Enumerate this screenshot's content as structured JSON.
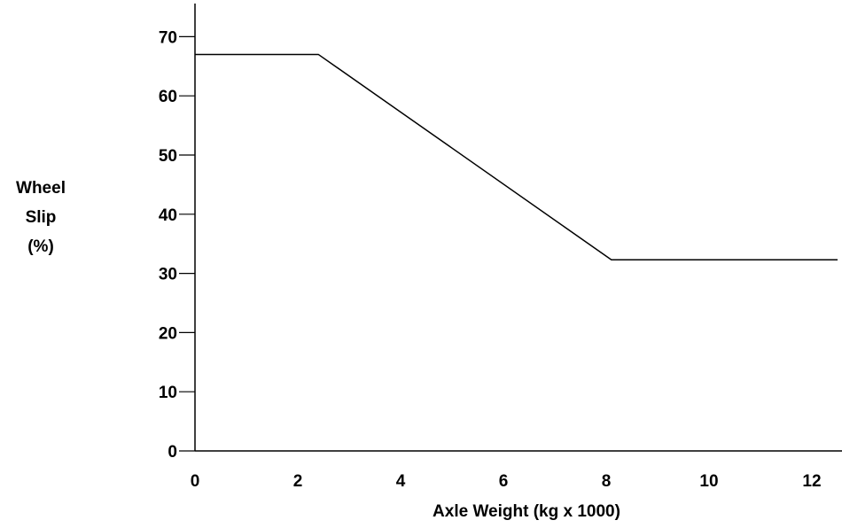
{
  "chart_data": {
    "type": "line",
    "title": "",
    "xlabel": "Axle Weight (kg x 1000)",
    "ylabel_lines": [
      "Wheel",
      "Slip",
      "(%)"
    ],
    "xlim": [
      0,
      12.5
    ],
    "ylim": [
      0,
      75
    ],
    "x_ticks": [
      0,
      2,
      4,
      6,
      8,
      10,
      12
    ],
    "y_ticks": [
      0,
      10,
      20,
      30,
      40,
      50,
      60,
      70
    ],
    "grid": false,
    "series": [
      {
        "x": [
          0,
          2.4,
          8.1,
          12.5
        ],
        "y": [
          67,
          67,
          32.3,
          32.3
        ]
      }
    ]
  }
}
